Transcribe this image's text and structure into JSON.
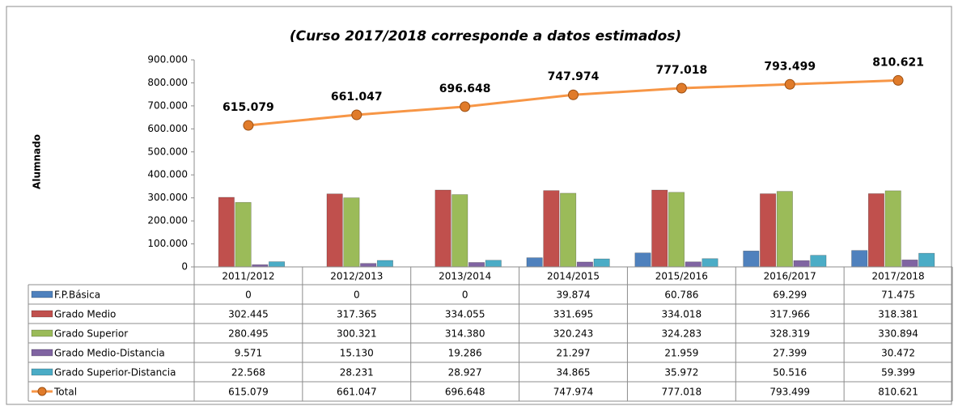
{
  "chart_data": {
    "type": "bar",
    "title": "(Curso 2017/2018 corresponde a datos estimados)",
    "y_label": "Alumnado",
    "categories": [
      "2011/2012",
      "2012/2013",
      "2013/2014",
      "2014/2015",
      "2015/2016",
      "2016/2017",
      "2017/2018"
    ],
    "ylim": [
      0,
      900000
    ],
    "yticks": [
      0,
      {
        "value": 100000,
        "label": "100.000"
      },
      {
        "value": 200000,
        "label": "200.000"
      },
      {
        "value": 300000,
        "label": "300.000"
      },
      {
        "value": 400000,
        "label": "400.000"
      },
      {
        "value": 500000,
        "label": "500.000"
      },
      {
        "value": 600000,
        "label": "600.000"
      },
      {
        "value": 700000,
        "label": "700.000"
      },
      {
        "value": 800000,
        "label": "800.000"
      },
      {
        "value": 900000,
        "label": "900.000"
      }
    ],
    "grid": false,
    "series": [
      {
        "name": "F.P.Básica",
        "color": "#4f81bd",
        "values": [
          0,
          0,
          0,
          39874,
          60786,
          69299,
          71475
        ],
        "value_labels": [
          "0",
          "0",
          "0",
          "39.874",
          "60.786",
          "69.299",
          "71.475"
        ]
      },
      {
        "name": "Grado Medio",
        "color": "#c0504d",
        "values": [
          302445,
          317365,
          334055,
          331695,
          334018,
          317966,
          318381
        ],
        "value_labels": [
          "302.445",
          "317.365",
          "334.055",
          "331.695",
          "334.018",
          "317.966",
          "318.381"
        ]
      },
      {
        "name": "Grado Superior",
        "color": "#9bbb59",
        "values": [
          280495,
          300321,
          314380,
          320243,
          324283,
          328319,
          330894
        ],
        "value_labels": [
          "280.495",
          "300.321",
          "314.380",
          "320.243",
          "324.283",
          "328.319",
          "330.894"
        ]
      },
      {
        "name": "Grado Medio-Distancia",
        "color": "#8064a2",
        "values": [
          9571,
          15130,
          19286,
          21297,
          21959,
          27399,
          30472
        ],
        "value_labels": [
          "9.571",
          "15.130",
          "19.286",
          "21.297",
          "21.959",
          "27.399",
          "30.472"
        ]
      },
      {
        "name": "Grado Superior-Distancia",
        "color": "#4bacc6",
        "values": [
          22568,
          28231,
          28927,
          34865,
          35972,
          50516,
          59399
        ],
        "value_labels": [
          "22.568",
          "28.231",
          "28.927",
          "34.865",
          "35.972",
          "50.516",
          "59.399"
        ]
      },
      {
        "name": "Total",
        "type": "line",
        "color": "#f79646",
        "values": [
          615079,
          661047,
          696648,
          747974,
          777018,
          793499,
          810621
        ],
        "value_labels": [
          "615.079",
          "661.047",
          "696.648",
          "747.974",
          "777.018",
          "793.499",
          "810.621"
        ]
      }
    ]
  }
}
